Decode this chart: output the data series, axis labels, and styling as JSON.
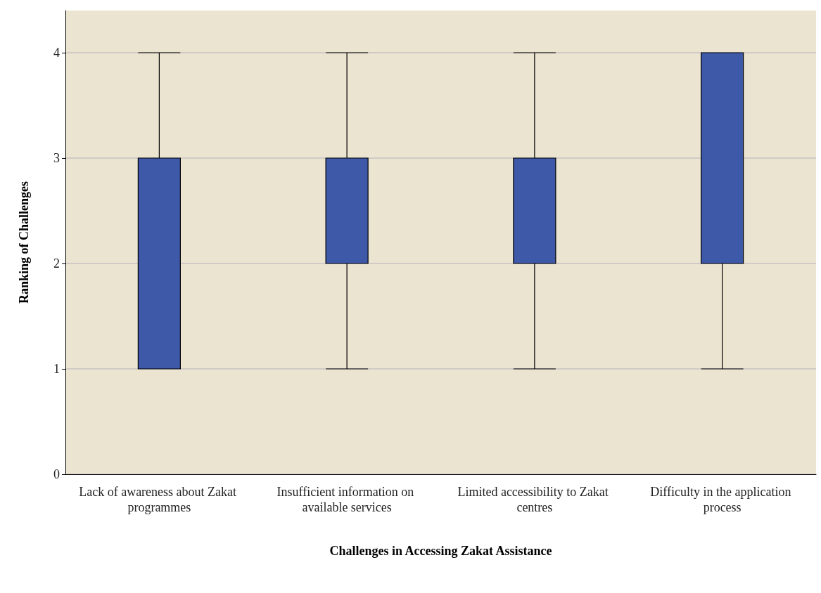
{
  "chart_data": {
    "type": "box",
    "xlabel": "Challenges in Accessing Zakat Assistance",
    "ylabel": "Ranking of Challenges",
    "categories": [
      "Lack of awareness about Zakat programmes",
      "Insufficient information on available services",
      "Limited accessibility to Zakat centres",
      "Difficulty in the application process"
    ],
    "boxes": [
      {
        "low": 1,
        "q1": 1,
        "median": 1,
        "q3": 3,
        "high": 4
      },
      {
        "low": 1,
        "q1": 2,
        "median": 2,
        "q3": 3,
        "high": 4
      },
      {
        "low": 1,
        "q1": 2,
        "median": 2,
        "q3": 3,
        "high": 4
      },
      {
        "low": 1,
        "q1": 2,
        "median": 4,
        "q3": 4,
        "high": 4
      }
    ],
    "color": "#3e59a8",
    "ylim": [
      0,
      4.4
    ],
    "yticks": [
      0,
      1,
      2,
      3,
      4
    ],
    "grid": "y"
  }
}
